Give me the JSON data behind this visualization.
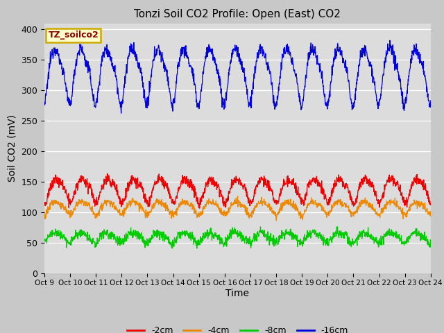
{
  "title": "Tonzi Soil CO2 Profile: Open (East) CO2",
  "ylabel": "Soil CO2 (mV)",
  "xlabel": "Time",
  "ylim": [
    0,
    410
  ],
  "xlim": [
    0,
    360
  ],
  "plot_bg_color": "#dcdcdc",
  "fig_bg_color": "#c8c8c8",
  "legend_label": "TZ_soilco2",
  "legend_label_color": "#8b0000",
  "legend_box_facecolor": "#ffffcc",
  "legend_box_edgecolor": "#ccaa00",
  "series": {
    "-16cm": {
      "color": "#0000dd"
    },
    "-2cm": {
      "color": "#ee0000"
    },
    "-4cm": {
      "color": "#ee8800"
    },
    "-8cm": {
      "color": "#00cc00"
    }
  },
  "xtick_labels": [
    "Oct 9",
    "Oct 10",
    "Oct 11",
    "Oct 12",
    "Oct 13",
    "Oct 14",
    "Oct 15",
    "Oct 16",
    "Oct 17",
    "Oct 18",
    "Oct 19",
    "Oct 20",
    "Oct 21",
    "Oct 22",
    "Oct 23",
    "Oct 24"
  ],
  "xtick_positions": [
    0,
    24,
    48,
    72,
    96,
    120,
    144,
    168,
    192,
    216,
    240,
    264,
    288,
    312,
    336,
    360
  ],
  "ytick_positions": [
    0,
    50,
    100,
    150,
    200,
    250,
    300,
    350,
    400
  ],
  "n_points": 1440,
  "period_hours": 24,
  "blue_base": 330,
  "blue_amp": 42,
  "blue_noise": 5,
  "red_base": 138,
  "red_amp": 18,
  "red_noise": 4,
  "orange_base": 108,
  "orange_amp": 10,
  "orange_noise": 3,
  "green_base": 59,
  "green_amp": 8,
  "green_noise": 4
}
